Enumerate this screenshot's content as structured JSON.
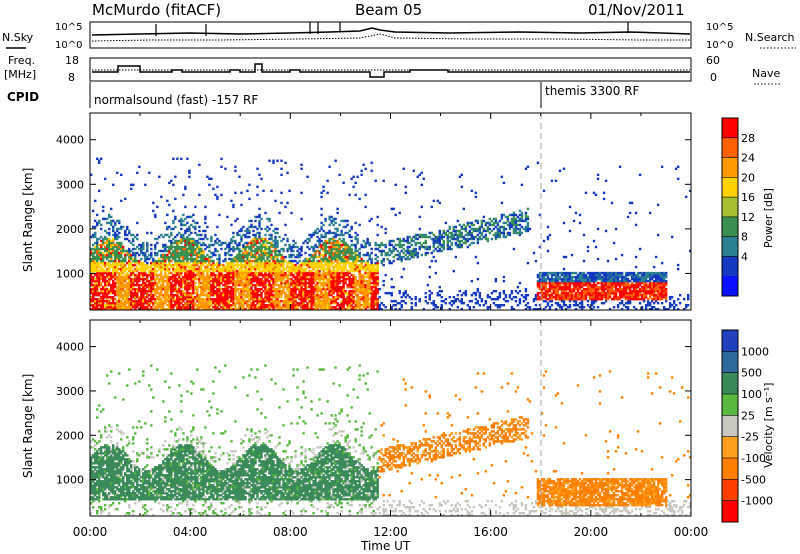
{
  "header": {
    "station": "McMurdo (fitACF)",
    "beam": "Beam 05",
    "date": "01/Nov/2011"
  },
  "top_panels": {
    "nsky_label": "N.Sky",
    "nsky_ticks": [
      "10^5",
      "10^0"
    ],
    "nsearch_label": "N.Search",
    "nsearch_ticks": [
      "10^5",
      "10^0"
    ],
    "freq_label_1": "Freq.",
    "freq_label_2": "[MHz]",
    "freq_ticks": [
      "18",
      "8"
    ],
    "nave_label": "Nave",
    "nave_ticks": [
      "60",
      "0"
    ],
    "cpid_label": "CPID",
    "cpid_modes": [
      {
        "name": "normalsound (fast) -157 RF",
        "start_hour": 0
      },
      {
        "name": "themis 3300 RF",
        "start_hour": 18
      }
    ]
  },
  "chart_data": [
    {
      "type": "heatmap",
      "title": "",
      "quantity": "Power",
      "ylabel": "Slant Range [km]",
      "xlabel": "",
      "xlim": [
        0,
        24
      ],
      "ylim": [
        180,
        4600
      ],
      "y_ticks": [
        1000,
        2000,
        3000,
        4000
      ],
      "colorbar": {
        "label": "Power [dB]",
        "ticks": [
          "28",
          "24",
          "20",
          "16",
          "12",
          "8",
          "4"
        ],
        "colors": [
          "#ff0000",
          "#ff6000",
          "#ff9a00",
          "#ffd200",
          "#a8c030",
          "#3a9050",
          "#2a8090",
          "#1438c0",
          "#0a10ff"
        ]
      }
    },
    {
      "type": "heatmap",
      "title": "",
      "quantity": "Velocity",
      "ylabel": "Slant Range [km]",
      "xlabel": "Time UT",
      "xlim": [
        0,
        24
      ],
      "ylim": [
        180,
        4600
      ],
      "x_ticks": [
        "00:00",
        "04:00",
        "08:00",
        "12:00",
        "16:00",
        "20:00",
        "00:00"
      ],
      "y_ticks": [
        1000,
        2000,
        3000,
        4000
      ],
      "colorbar": {
        "label": "Velocity [m s⁻¹]",
        "ticks": [
          "1000",
          "500",
          "100",
          "25",
          "-25",
          "-100",
          "-500",
          "-1000"
        ],
        "colors": [
          "#2040c0",
          "#2e6a9a",
          "#3a8a5a",
          "#58b840",
          "#c8c8c0",
          "#ffa020",
          "#ff8000",
          "#ff4000",
          "#ff0000"
        ]
      }
    }
  ]
}
